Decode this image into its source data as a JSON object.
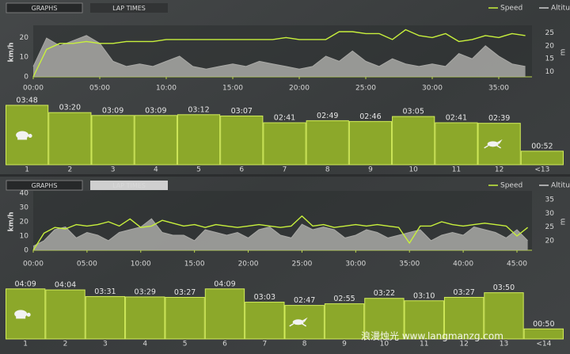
{
  "panels": [
    {
      "tabs": [
        "GRAPHS",
        "LAP TIMES"
      ]
    },
    {
      "tabs": [
        "GRAPHS",
        "LAP TIMES"
      ]
    }
  ],
  "chart_data": [
    {
      "type": "line",
      "x": [
        0,
        1,
        2,
        3,
        4,
        5,
        6,
        7,
        8,
        9,
        10,
        11,
        12,
        13,
        14,
        15,
        16,
        17,
        18,
        19,
        20,
        21,
        22,
        23,
        24,
        25,
        26,
        27,
        28,
        29,
        30,
        31,
        32,
        33,
        34,
        35,
        36,
        37
      ],
      "series": [
        {
          "name": "Speed",
          "color": "#c8f03c",
          "values": [
            0,
            14,
            17,
            17,
            18,
            17,
            17,
            18,
            18,
            18,
            19,
            19,
            19,
            19,
            19,
            19,
            19,
            19,
            19,
            20,
            19,
            19,
            19,
            23,
            23,
            22,
            22,
            19,
            24,
            21,
            20,
            22,
            18,
            19,
            21,
            20,
            22,
            21
          ]
        },
        {
          "name": "Altitude",
          "color": "#a9a9a6",
          "axis": "y2",
          "values": [
            12,
            23,
            20,
            22,
            24,
            21,
            14,
            12,
            13,
            12,
            14,
            16,
            12,
            11,
            12,
            13,
            12,
            14,
            13,
            12,
            11,
            12,
            16,
            14,
            18,
            14,
            12,
            15,
            13,
            12,
            13,
            12,
            17,
            15,
            20,
            16,
            13,
            12
          ]
        }
      ],
      "ylabel": "km/h",
      "y2label": "m",
      "xlim": [
        0,
        37.5
      ],
      "xticks": [
        {
          "value": 0,
          "label": "00:00"
        },
        {
          "value": 5,
          "label": "05:00"
        },
        {
          "value": 10,
          "label": "10:00"
        },
        {
          "value": 15,
          "label": "15:00"
        },
        {
          "value": 20,
          "label": "20:00"
        },
        {
          "value": 25,
          "label": "25:00"
        },
        {
          "value": 30,
          "label": "30:00"
        },
        {
          "value": 35,
          "label": "35:00"
        }
      ],
      "ylim": [
        0,
        25
      ],
      "yticks": [
        0,
        10,
        20
      ],
      "y2lim": [
        8,
        27
      ],
      "y2ticks": [
        10,
        15,
        20,
        25
      ]
    },
    {
      "type": "bar",
      "categories": [
        "1",
        "2",
        "3",
        "4",
        "5",
        "6",
        "7",
        "8",
        "9",
        "10",
        "11",
        "12",
        "<13"
      ],
      "values": [
        228,
        200,
        189,
        189,
        192,
        187,
        161,
        169,
        166,
        185,
        161,
        159,
        52
      ],
      "value_labels": [
        "03:48",
        "03:20",
        "03:09",
        "03:09",
        "03:12",
        "03:07",
        "02:41",
        "02:49",
        "02:46",
        "03:05",
        "02:41",
        "02:39",
        "00:52"
      ],
      "color": "#8ca82a",
      "ylim": [
        0,
        240
      ]
    },
    {
      "type": "line",
      "x": [
        0,
        1,
        2,
        3,
        4,
        5,
        6,
        7,
        8,
        9,
        10,
        11,
        12,
        13,
        14,
        15,
        16,
        17,
        18,
        19,
        20,
        21,
        22,
        23,
        24,
        25,
        26,
        27,
        28,
        29,
        30,
        31,
        32,
        33,
        34,
        35,
        36,
        37,
        38,
        39,
        40,
        41,
        42,
        43,
        44,
        45,
        46
      ],
      "series": [
        {
          "name": "Speed",
          "color": "#c8f03c",
          "values": [
            0,
            12,
            16,
            15,
            18,
            17,
            18,
            20,
            17,
            22,
            16,
            17,
            21,
            19,
            17,
            18,
            16,
            18,
            17,
            16,
            17,
            18,
            17,
            16,
            17,
            24,
            17,
            18,
            16,
            17,
            18,
            17,
            18,
            17,
            16,
            5,
            17,
            17,
            20,
            18,
            17,
            18,
            19,
            18,
            17,
            10,
            16
          ]
        },
        {
          "name": "Altitude",
          "color": "#a9a9a6",
          "axis": "y2",
          "values": [
            18,
            20,
            24,
            25,
            21,
            23,
            22,
            20,
            23,
            24,
            25,
            28,
            23,
            22,
            22,
            20,
            24,
            23,
            22,
            23,
            21,
            24,
            25,
            22,
            21,
            26,
            24,
            25,
            24,
            21,
            22,
            24,
            23,
            21,
            22,
            23,
            24,
            20,
            22,
            23,
            22,
            25,
            24,
            23,
            21,
            24,
            20
          ]
        }
      ],
      "ylabel": "km/h",
      "y2label": "m",
      "xlim": [
        0,
        46.4
      ],
      "xticks": [
        {
          "value": 0,
          "label": "00:00"
        },
        {
          "value": 5,
          "label": "05:00"
        },
        {
          "value": 10,
          "label": "10:00"
        },
        {
          "value": 15,
          "label": "15:00"
        },
        {
          "value": 20,
          "label": "20:00"
        },
        {
          "value": 25,
          "label": "25:00"
        },
        {
          "value": 30,
          "label": "30:00"
        },
        {
          "value": 35,
          "label": "35:00"
        },
        {
          "value": 40,
          "label": "40:00"
        },
        {
          "value": 45,
          "label": "45:00"
        }
      ],
      "ylim": [
        0,
        40
      ],
      "yticks": [
        0,
        10,
        20,
        30,
        40
      ],
      "y2lim": [
        16.5,
        37.3
      ],
      "y2ticks": [
        20,
        25,
        30,
        35
      ]
    },
    {
      "type": "bar",
      "categories": [
        "1",
        "2",
        "3",
        "4",
        "5",
        "6",
        "7",
        "8",
        "9",
        "10",
        "11",
        "12",
        "13",
        "<14"
      ],
      "values": [
        249,
        244,
        211,
        209,
        207,
        249,
        183,
        167,
        175,
        202,
        190,
        207,
        230,
        50
      ],
      "value_labels": [
        "04:09",
        "04:04",
        "03:31",
        "03:29",
        "03:27",
        "04:09",
        "03:03",
        "02:47",
        "02:55",
        "03:22",
        "03:10",
        "03:27",
        "03:50",
        "00:50"
      ],
      "color": "#8ca82a",
      "ylim": [
        0,
        260
      ]
    }
  ],
  "watermark": "浪漫烛光 www.langmanzg.com"
}
